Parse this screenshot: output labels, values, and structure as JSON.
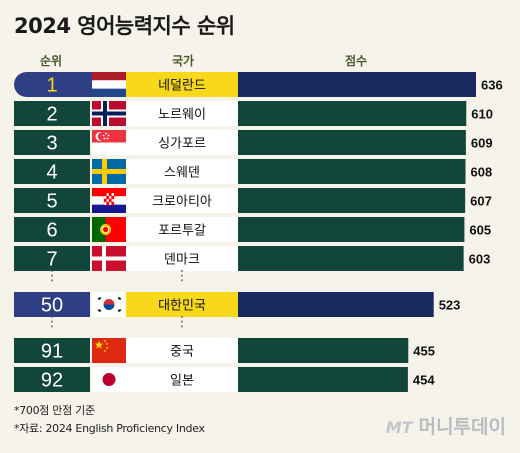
{
  "title": "2024 영어능력지수 순위",
  "headers": {
    "rank": "순위",
    "country": "국가",
    "score": "점수"
  },
  "colors": {
    "highlight_bar": "#1b2a5e",
    "bar": "#12463a",
    "highlight_label": "#f7d81b",
    "label": "#ffffff",
    "rank_highlight": "#2e3f85",
    "rank": "#12463a",
    "rank_text_highlight": "#f7d81b"
  },
  "chart_data": {
    "type": "bar",
    "orientation": "horizontal",
    "categories": [
      "네덜란드",
      "노르웨이",
      "싱가포르",
      "스웨덴",
      "크로아티아",
      "포르투갈",
      "덴마크",
      "대한민국",
      "중국",
      "일본"
    ],
    "ranks": [
      "1",
      "2",
      "3",
      "4",
      "5",
      "6",
      "7",
      "50",
      "91",
      "92"
    ],
    "values": [
      636,
      610,
      609,
      608,
      607,
      605,
      603,
      523,
      455,
      454
    ],
    "highlighted": [
      "네덜란드",
      "대한민국"
    ],
    "flags": [
      "netherlands-flag",
      "norway-flag",
      "singapore-flag",
      "sweden-flag",
      "croatia-flag",
      "portugal-flag",
      "denmark-flag",
      "korea-flag",
      "china-flag",
      "japan-flag"
    ],
    "gaps_after": [
      "덴마크",
      "대한민국"
    ],
    "gap_marker": "⋮"
  },
  "footnotes": [
    "*700점 만점 기준",
    "*자료: 2024 English Proficiency Index"
  ],
  "logo": {
    "mark": "MT",
    "text": "머니투데이"
  }
}
